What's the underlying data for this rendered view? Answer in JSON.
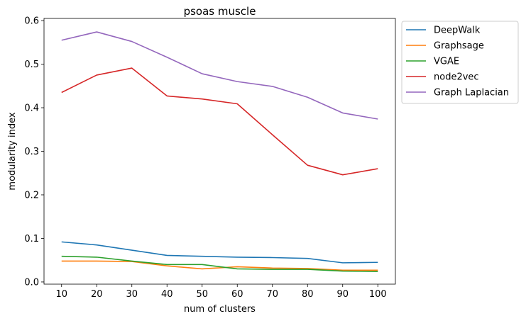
{
  "chart_data": {
    "type": "line",
    "title": "psoas muscle",
    "xlabel": "num of clusters",
    "ylabel": "modularity index",
    "x": [
      10,
      20,
      30,
      40,
      50,
      60,
      70,
      80,
      90,
      100
    ],
    "xlim": [
      5,
      105
    ],
    "ylim": [
      -0.005,
      0.605
    ],
    "yticks": [
      0.0,
      0.1,
      0.2,
      0.3,
      0.4,
      0.5,
      0.6
    ],
    "ytick_labels": [
      "0.0",
      "0.1",
      "0.2",
      "0.3",
      "0.4",
      "0.5",
      "0.6"
    ],
    "xtick_labels": [
      "10",
      "20",
      "30",
      "40",
      "50",
      "60",
      "70",
      "80",
      "90",
      "100"
    ],
    "legend_position": "outside-top-right",
    "grid": false,
    "series": [
      {
        "name": "DeepWalk",
        "color": "#1f77b4",
        "values": [
          0.092,
          0.085,
          0.073,
          0.061,
          0.059,
          0.057,
          0.056,
          0.054,
          0.044,
          0.045
        ]
      },
      {
        "name": "Graphsage",
        "color": "#ff7f0e",
        "values": [
          0.048,
          0.048,
          0.047,
          0.037,
          0.03,
          0.035,
          0.032,
          0.031,
          0.027,
          0.027
        ]
      },
      {
        "name": "VGAE",
        "color": "#2ca02c",
        "values": [
          0.059,
          0.057,
          0.048,
          0.04,
          0.04,
          0.03,
          0.029,
          0.029,
          0.025,
          0.024
        ]
      },
      {
        "name": "node2vec",
        "color": "#d62728",
        "values": [
          0.435,
          0.475,
          0.491,
          0.427,
          0.42,
          0.409,
          0.338,
          0.268,
          0.246,
          0.26
        ]
      },
      {
        "name": "Graph Laplacian",
        "color": "#9467bd",
        "values": [
          0.555,
          0.574,
          0.552,
          0.516,
          0.478,
          0.46,
          0.449,
          0.424,
          0.388,
          0.374
        ]
      }
    ]
  }
}
